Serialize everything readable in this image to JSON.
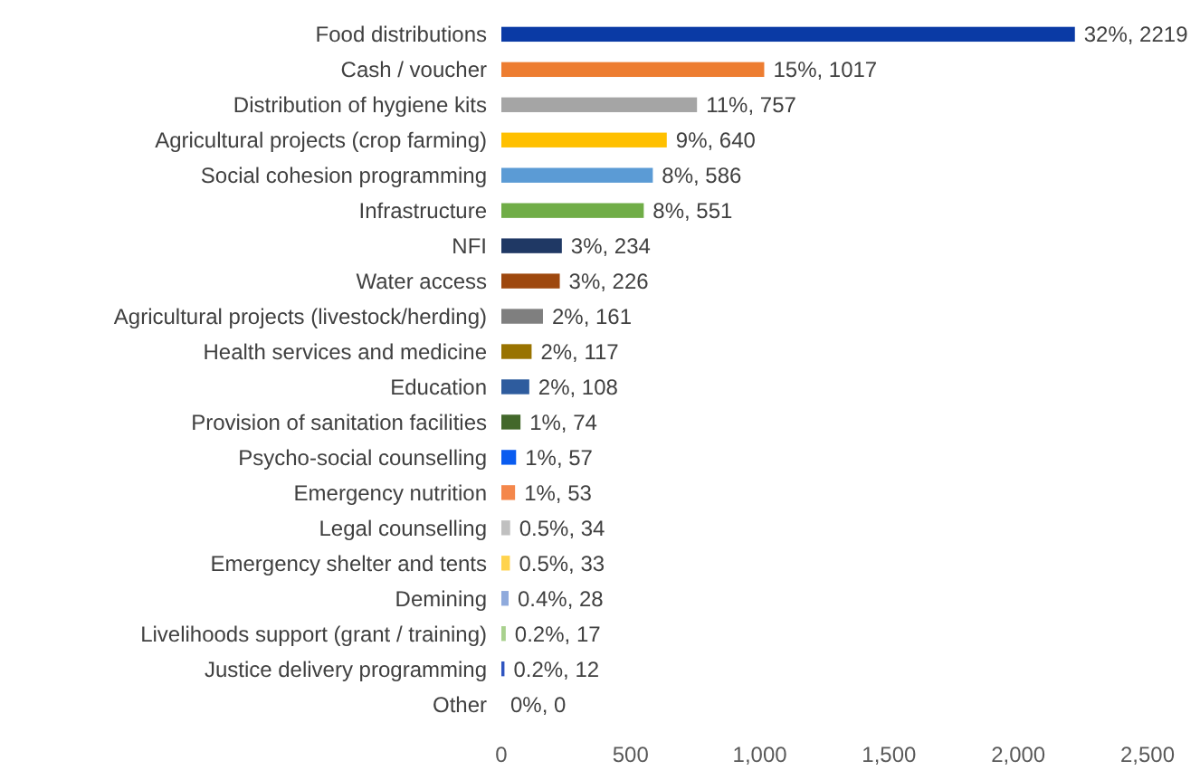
{
  "chart_data": {
    "type": "bar",
    "orientation": "horizontal",
    "categories": [
      "Food distributions",
      "Cash / voucher",
      "Distribution of hygiene kits",
      "Agricultural projects (crop farming)",
      "Social cohesion programming",
      "Infrastructure",
      "NFI",
      "Water access",
      "Agricultural projects (livestock/herding)",
      "Health services and medicine",
      "Education",
      "Provision of sanitation facilities",
      "Psycho-social counselling",
      "Emergency nutrition",
      "Legal counselling",
      "Emergency shelter and tents",
      "Demining",
      "Livelihoods support (grant / training)",
      "Justice delivery programming",
      "Other"
    ],
    "values": [
      2219,
      1017,
      757,
      640,
      586,
      551,
      234,
      226,
      161,
      117,
      108,
      74,
      57,
      53,
      34,
      33,
      28,
      17,
      12,
      0
    ],
    "colors": [
      "#0a3aa5",
      "#ed7d31",
      "#a5a5a5",
      "#ffc000",
      "#5b9bd5",
      "#70ad47",
      "#1f3864",
      "#9e480e",
      "#7f7f7f",
      "#997300",
      "#2e5c9e",
      "#43682b",
      "#0a5cf0",
      "#f4874b",
      "#c0c0c0",
      "#ffd34d",
      "#8faadc",
      "#a9d18e",
      "#2f55c0",
      "#cccccc"
    ],
    "value_labels": [
      "32%, 2219",
      "15%, 1017",
      "11%, 757",
      "9%, 640",
      "8%, 586",
      "8%, 551",
      "3%, 234",
      "3%, 226",
      "2%, 161",
      "2%, 117",
      "2%, 108",
      "1%, 74",
      "1%, 57",
      "1%, 53",
      "0.5%, 34",
      "0.5%, 33",
      "0.4%, 28",
      "0.2%, 17",
      "0.2%, 12",
      "0%, 0"
    ],
    "xlim": [
      0,
      2500
    ],
    "xticks": [
      {
        "value": 0,
        "label": "0"
      },
      {
        "value": 500,
        "label": "500"
      },
      {
        "value": 1000,
        "label": "1,000"
      },
      {
        "value": 1500,
        "label": "1,500"
      },
      {
        "value": 2000,
        "label": "2,000"
      },
      {
        "value": 2500,
        "label": "2,500"
      }
    ],
    "grid": false
  }
}
